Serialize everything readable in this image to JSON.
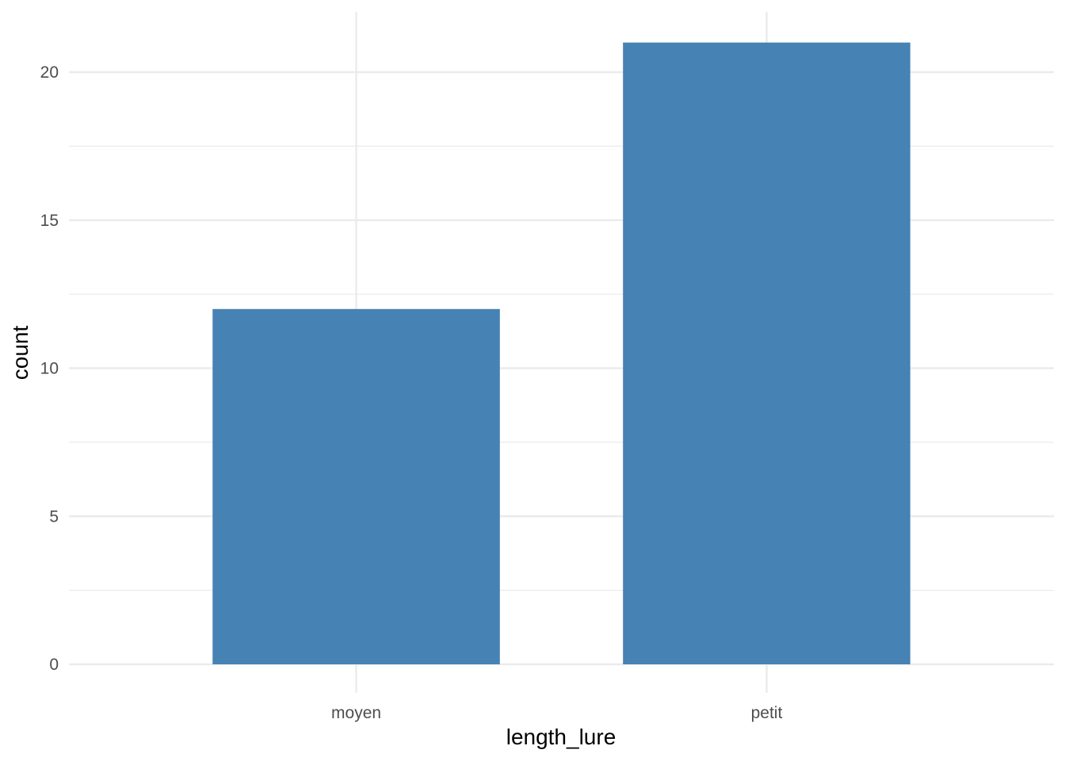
{
  "chart_data": {
    "type": "bar",
    "categories": [
      "moyen",
      "petit"
    ],
    "values": [
      12,
      21
    ],
    "xlabel": "length_lure",
    "ylabel": "count",
    "ylim": [
      0,
      22
    ],
    "y_ticks": [
      0,
      5,
      10,
      15,
      20
    ],
    "grid": true,
    "legend": "none",
    "bar_color": "#4682B4",
    "grid_color": "#EBEBEB"
  }
}
